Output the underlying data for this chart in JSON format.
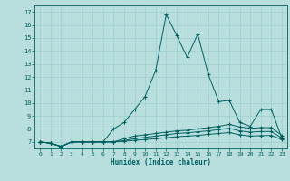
{
  "xlabel": "Humidex (Indice chaleur)",
  "xlim": [
    -0.5,
    23.5
  ],
  "ylim": [
    6.5,
    17.5
  ],
  "yticks": [
    7,
    8,
    9,
    10,
    11,
    12,
    13,
    14,
    15,
    16,
    17
  ],
  "xticks": [
    0,
    1,
    2,
    3,
    4,
    5,
    6,
    7,
    8,
    9,
    10,
    11,
    12,
    13,
    14,
    15,
    16,
    17,
    18,
    19,
    20,
    21,
    22,
    23
  ],
  "background_color": "#b8dede",
  "grid_color": "#9ecece",
  "line_color": "#006060",
  "series": [
    [
      7.0,
      6.9,
      6.65,
      7.0,
      7.0,
      7.0,
      7.0,
      8.0,
      8.5,
      9.5,
      10.5,
      12.5,
      16.8,
      15.2,
      13.5,
      15.3,
      12.2,
      10.1,
      10.2,
      8.5,
      8.2,
      9.5,
      9.5,
      7.3
    ],
    [
      7.0,
      6.9,
      6.65,
      7.0,
      7.0,
      7.0,
      7.0,
      7.0,
      7.25,
      7.45,
      7.55,
      7.65,
      7.75,
      7.85,
      7.9,
      8.0,
      8.1,
      8.2,
      8.35,
      8.15,
      8.05,
      8.1,
      8.1,
      7.5
    ],
    [
      7.0,
      6.9,
      6.65,
      7.0,
      7.0,
      7.0,
      7.0,
      7.0,
      7.1,
      7.25,
      7.35,
      7.45,
      7.55,
      7.65,
      7.7,
      7.78,
      7.85,
      7.95,
      8.05,
      7.85,
      7.75,
      7.8,
      7.8,
      7.3
    ],
    [
      7.0,
      6.9,
      6.65,
      7.0,
      7.0,
      7.0,
      7.0,
      7.0,
      7.05,
      7.12,
      7.18,
      7.25,
      7.32,
      7.4,
      7.45,
      7.5,
      7.58,
      7.65,
      7.72,
      7.55,
      7.45,
      7.48,
      7.5,
      7.18
    ]
  ]
}
